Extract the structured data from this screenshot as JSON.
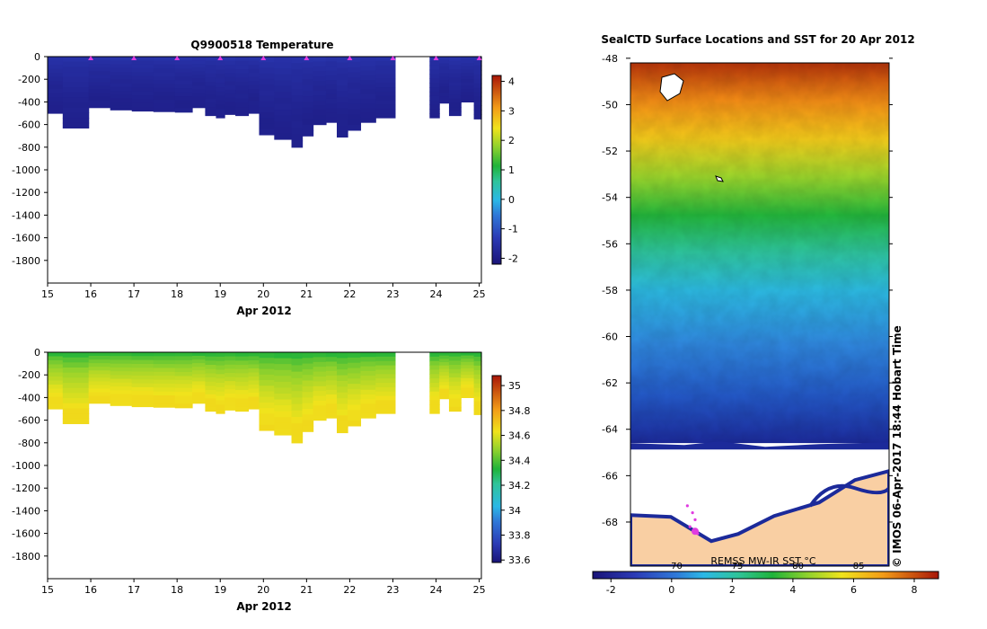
{
  "colors": {
    "ice_white": "#ffffff",
    "land": "#f9cfa3",
    "coast": "#000000",
    "float_marker": "#e03be0"
  },
  "chart_data": [
    {
      "id": "temperature",
      "type": "heatmap",
      "title": "Q9900518  Temperature",
      "xlabel": "Apr 2012",
      "x_ticks": [
        "15",
        "16",
        "17",
        "18",
        "19",
        "20",
        "21",
        "22",
        "23",
        "24",
        "25"
      ],
      "xlim": [
        15,
        25.05
      ],
      "y_ticks": [
        "0",
        "-200",
        "-400",
        "-600",
        "-800",
        "-1000",
        "-1200",
        "-1400",
        "-1600",
        "-1800"
      ],
      "ylim": [
        -2000,
        0
      ],
      "colorbar": {
        "ticks": [
          "-2",
          "-1",
          "0",
          "1",
          "2",
          "3",
          "4"
        ],
        "range": [
          -2.2,
          4.2
        ]
      },
      "surface_value": -1.4,
      "bottom_value": -1.9,
      "profile_times": [
        15.0,
        15.7,
        16.2,
        16.7,
        17.2,
        17.7,
        18.2,
        18.5,
        18.8,
        19.0,
        19.2,
        19.5,
        19.8,
        20.0,
        20.5,
        20.8,
        21.0,
        21.3,
        21.6,
        21.8,
        22.1,
        22.4,
        22.8,
        23.3,
        23.75,
        23.95,
        24.2,
        24.4,
        24.75,
        25.0
      ],
      "profile_depths": [
        -500,
        -630,
        -450,
        -470,
        -480,
        -485,
        -490,
        -450,
        -520,
        -540,
        -510,
        -520,
        -500,
        -690,
        -730,
        -800,
        -700,
        -600,
        -580,
        -710,
        -650,
        -580,
        -540,
        -490,
        0,
        -540,
        -410,
        -520,
        -400,
        -550
      ],
      "gap": [
        23.25,
        23.75
      ],
      "float_times": [
        16,
        17,
        18,
        19,
        20,
        21,
        22,
        23,
        24,
        25
      ]
    },
    {
      "id": "salinity",
      "type": "heatmap",
      "title": "",
      "xlabel": "Apr 2012",
      "x_ticks": [
        "15",
        "16",
        "17",
        "18",
        "19",
        "20",
        "21",
        "22",
        "23",
        "24",
        "25"
      ],
      "xlim": [
        15,
        25.05
      ],
      "y_ticks": [
        "0",
        "-200",
        "-400",
        "-600",
        "-800",
        "-1000",
        "-1200",
        "-1400",
        "-1600",
        "-1800"
      ],
      "ylim": [
        -2000,
        0
      ],
      "colorbar": {
        "ticks": [
          "33.6",
          "33.8",
          "34",
          "34.2",
          "34.4",
          "34.6",
          "34.8",
          "35"
        ],
        "range": [
          33.58,
          35.08
        ]
      },
      "surface_value": 34.3,
      "bottom_value": 34.68,
      "profile_times": [
        15.0,
        15.7,
        16.2,
        16.7,
        17.2,
        17.7,
        18.2,
        18.5,
        18.8,
        19.0,
        19.2,
        19.5,
        19.8,
        20.0,
        20.5,
        20.8,
        21.0,
        21.3,
        21.6,
        21.8,
        22.1,
        22.4,
        22.8,
        23.3,
        23.75,
        23.95,
        24.2,
        24.4,
        24.75,
        25.0
      ],
      "profile_depths": [
        -500,
        -630,
        -450,
        -470,
        -480,
        -485,
        -490,
        -450,
        -520,
        -540,
        -510,
        -520,
        -500,
        -690,
        -730,
        -800,
        -700,
        -600,
        -580,
        -710,
        -650,
        -580,
        -540,
        -490,
        0,
        -540,
        -410,
        -520,
        -400,
        -550
      ],
      "gap": [
        23.25,
        23.75
      ]
    },
    {
      "id": "sst_map",
      "type": "heatmap",
      "title": "SealCTD Surface Locations and SST for 20 Apr 2012",
      "y_ticks": [
        "-48",
        "-50",
        "-52",
        "-54",
        "-56",
        "-58",
        "-60",
        "-62",
        "-64",
        "-66",
        "-68"
      ],
      "ylim": [
        -69.9,
        -48.2
      ],
      "colorbar": {
        "ticks": [
          "-2",
          "0",
          "2",
          "4",
          "6",
          "8"
        ],
        "range": [
          -2.6,
          8.8
        ],
        "labels_above": [
          "70",
          "75",
          "80",
          "85"
        ],
        "label": "REMSS MW-IR SST °C"
      },
      "ice_edge_lat": -64.6,
      "coast_lat": -67.7,
      "sst_north": 6.0,
      "sst_south": -1.6,
      "float_track_lat": [
        -67.3,
        -67.6,
        -67.9,
        -68.2,
        -68.5
      ],
      "float_track_lon_frac": [
        0.22,
        0.24,
        0.25,
        0.23,
        0.26
      ],
      "credit": "© IMOS 06-Apr-2017 18:44 Hobart Time"
    }
  ]
}
